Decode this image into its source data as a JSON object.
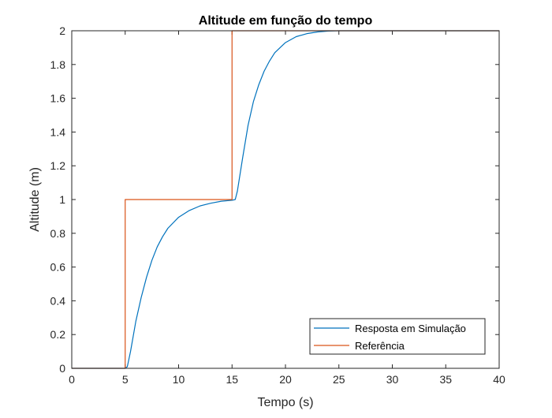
{
  "chart_data": {
    "type": "line",
    "title": "Altitude em função do tempo",
    "xlabel": "Tempo (s)",
    "ylabel": "Altitude (m)",
    "xlim": [
      0,
      40
    ],
    "ylim": [
      0,
      2
    ],
    "xticks": [
      0,
      5,
      10,
      15,
      20,
      25,
      30,
      35,
      40
    ],
    "yticks": [
      0,
      0.2,
      0.4,
      0.6,
      0.8,
      1,
      1.2,
      1.4,
      1.6,
      1.8,
      2
    ],
    "xtick_labels": [
      "0",
      "5",
      "10",
      "15",
      "20",
      "25",
      "30",
      "35",
      "40"
    ],
    "ytick_labels": [
      "0",
      "0.2",
      "0.4",
      "0.6",
      "0.8",
      "1",
      "1.2",
      "1.4",
      "1.6",
      "1.8",
      "2"
    ],
    "grid": false,
    "legend_position": "bottom-right",
    "series": [
      {
        "name": "Resposta em Simulação",
        "color": "#0072BD",
        "x": [
          0,
          5,
          5.2,
          5.5,
          6,
          6.5,
          7,
          7.5,
          8,
          8.5,
          9,
          10,
          11,
          12,
          13,
          14,
          15,
          15.3,
          15.5,
          16,
          16.5,
          17,
          17.5,
          18,
          18.5,
          19,
          20,
          21,
          22,
          23,
          24,
          25,
          30,
          35,
          40
        ],
        "y": [
          0,
          0,
          0.01,
          0.1,
          0.28,
          0.42,
          0.54,
          0.64,
          0.72,
          0.78,
          0.83,
          0.895,
          0.935,
          0.962,
          0.978,
          0.99,
          0.996,
          1.0,
          1.05,
          1.25,
          1.44,
          1.58,
          1.68,
          1.76,
          1.82,
          1.87,
          1.93,
          1.965,
          1.983,
          1.993,
          1.998,
          2.0,
          2.0,
          2.0,
          2.0
        ]
      },
      {
        "name": "Referência",
        "color": "#D95319",
        "x": [
          0,
          5,
          5,
          15,
          15,
          40
        ],
        "y": [
          0,
          0,
          1,
          1,
          2,
          2
        ]
      }
    ]
  }
}
